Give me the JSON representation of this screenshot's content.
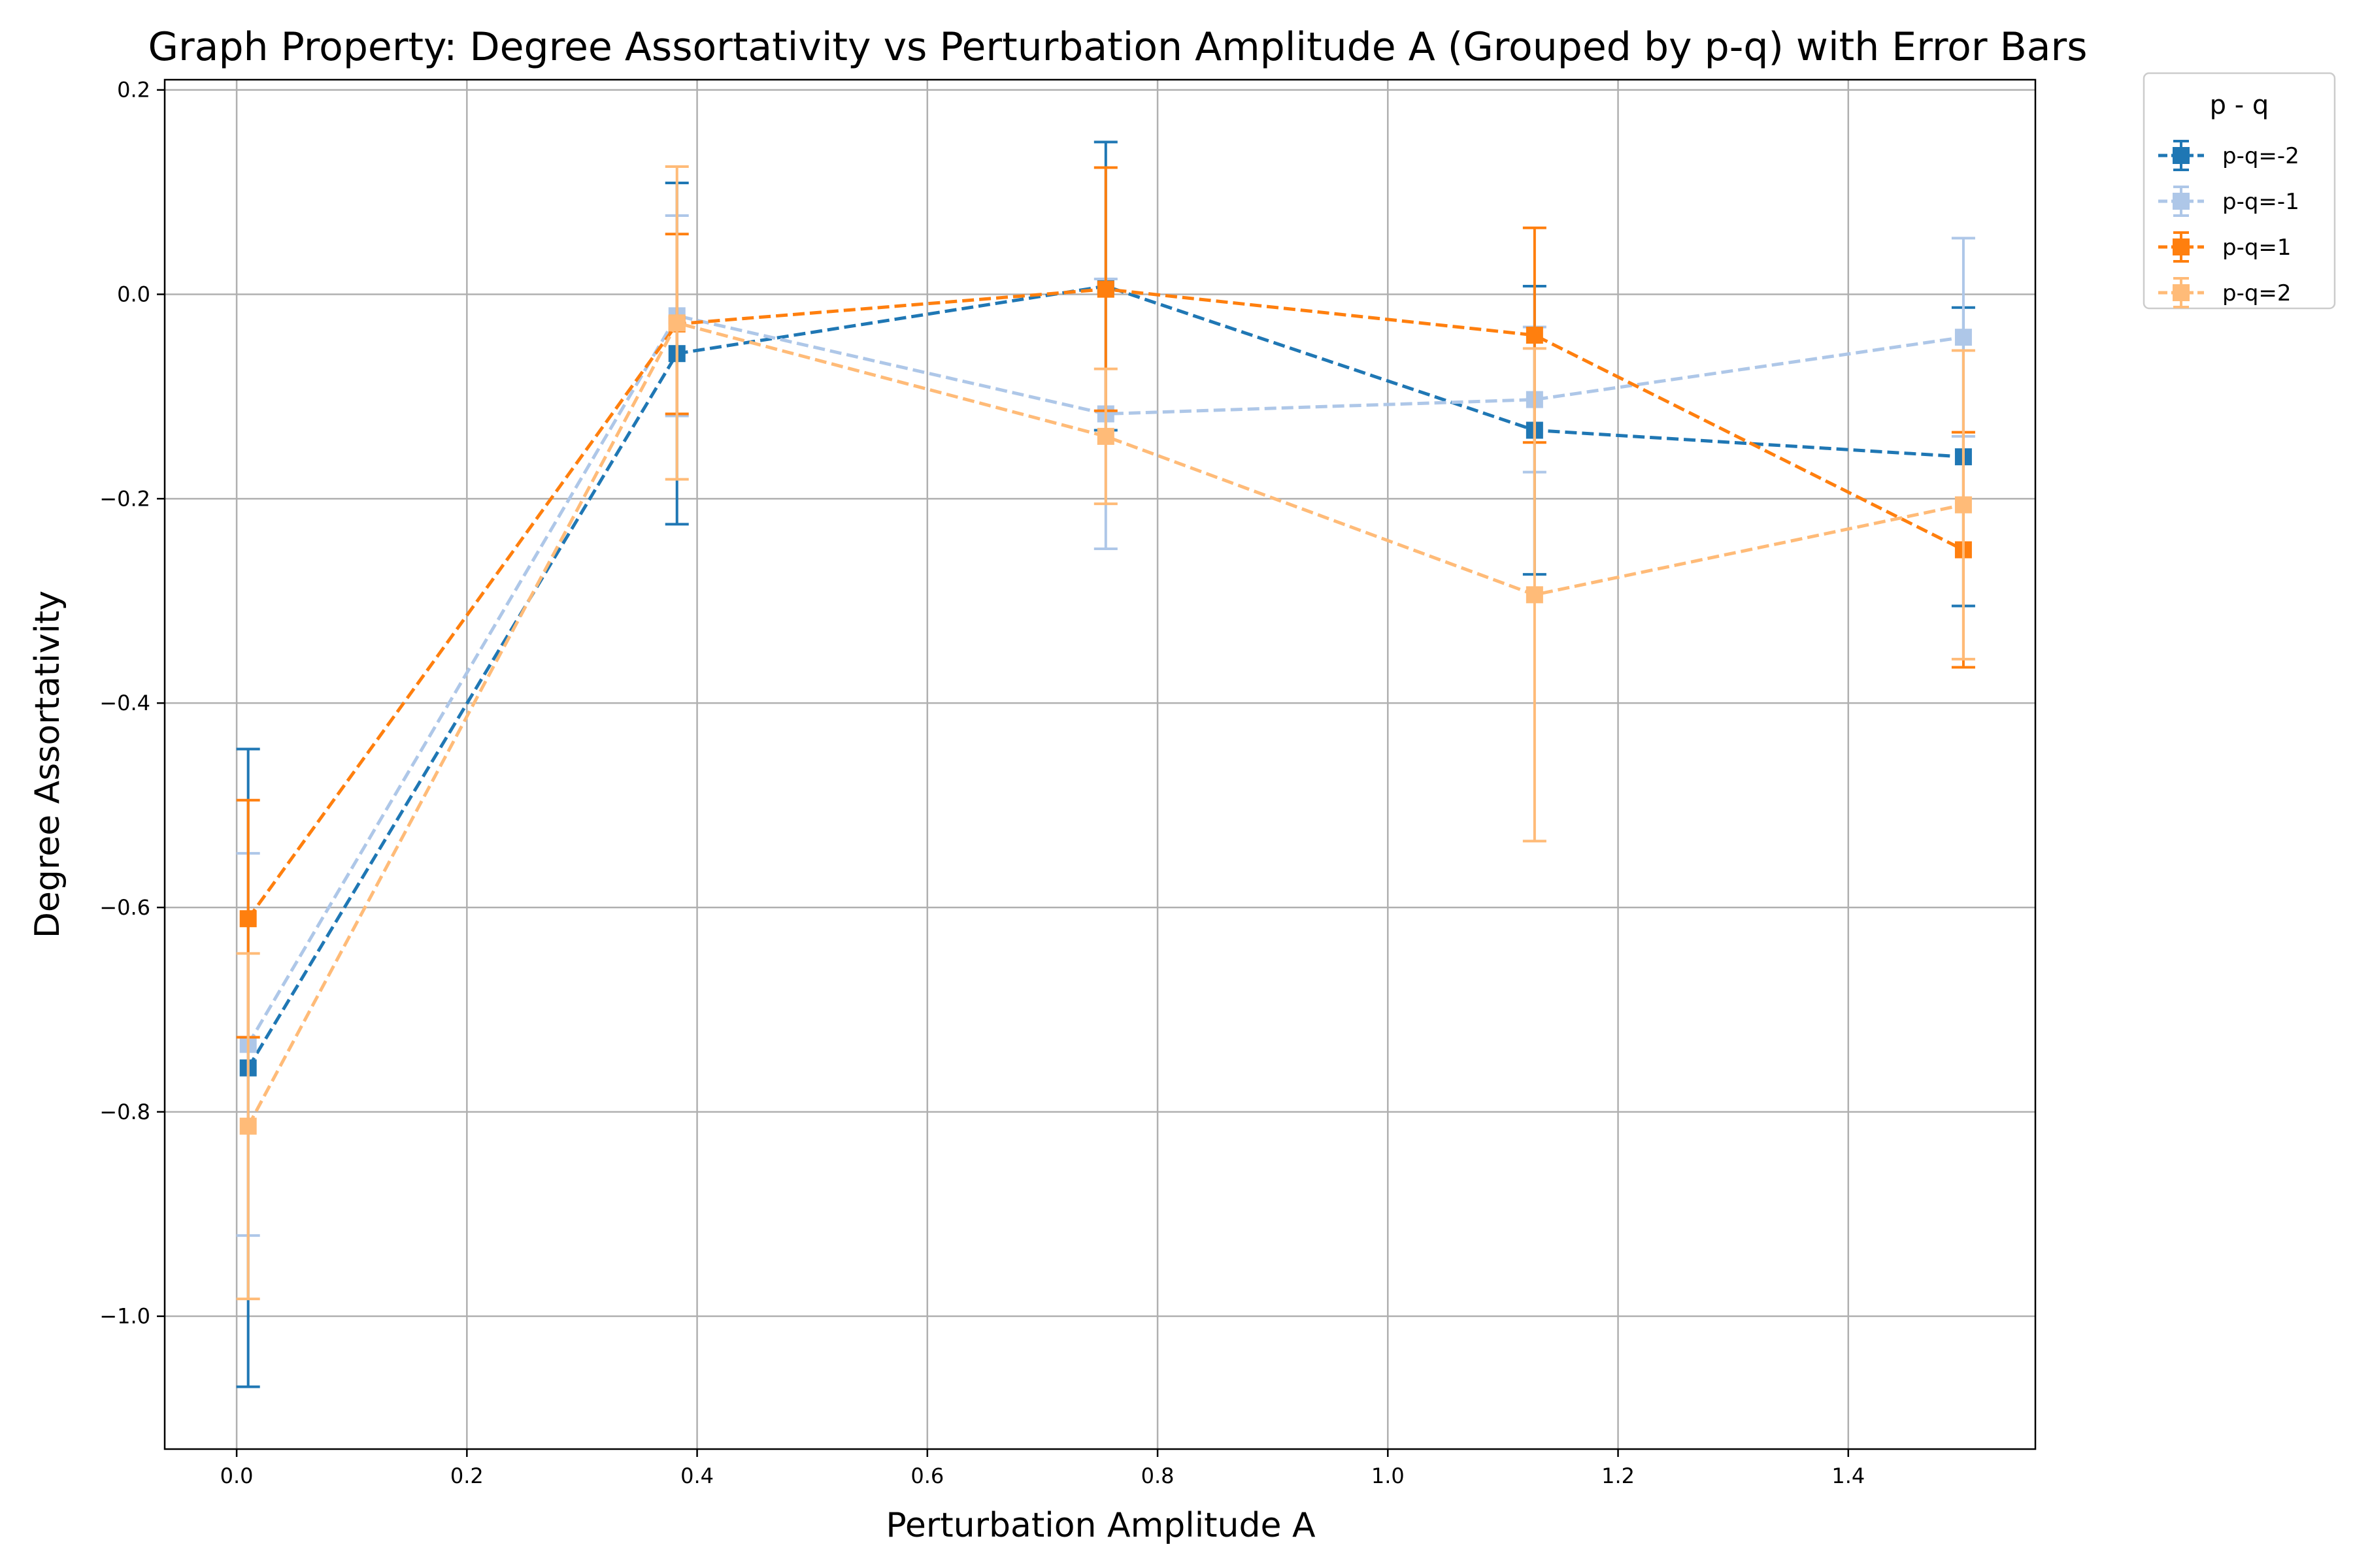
{
  "chart_data": {
    "type": "line",
    "title": "Graph Property: Degree Assortativity vs Perturbation Amplitude A (Grouped by p-q) with Error Bars",
    "xlabel": "Perturbation Amplitude A",
    "ylabel": "Degree Assortativity",
    "xlim": [
      -0.0625,
      1.5625
    ],
    "ylim": [
      -1.13,
      0.21
    ],
    "xticks": [
      0.0,
      0.2,
      0.4,
      0.6,
      0.8,
      1.0,
      1.2,
      1.4
    ],
    "xtick_labels": [
      "0.0",
      "0.2",
      "0.4",
      "0.6",
      "0.8",
      "1.0",
      "1.2",
      "1.4"
    ],
    "yticks": [
      -1.0,
      -0.8,
      -0.6,
      -0.4,
      -0.2,
      0.0,
      0.2
    ],
    "ytick_labels": [
      "−1.0",
      "−0.8",
      "−0.6",
      "−0.4",
      "−0.2",
      "0.0",
      "0.2"
    ],
    "grid": true,
    "legend": {
      "title": "p - q",
      "placement": "outside-top-right"
    },
    "x": [
      0.01,
      0.3825,
      0.755,
      1.1275,
      1.5
    ],
    "series": [
      {
        "name": "p-q=-2",
        "color": "#1f77b4",
        "values": [
          -0.757,
          -0.058,
          0.008,
          -0.133,
          -0.159
        ],
        "errors": [
          0.312,
          0.167,
          0.141,
          0.141,
          0.146
        ]
      },
      {
        "name": "p-q=-1",
        "color": "#aec7e8",
        "values": [
          -0.734,
          -0.021,
          -0.117,
          -0.103,
          -0.042
        ],
        "errors": [
          0.187,
          0.098,
          0.132,
          0.071,
          0.097
        ]
      },
      {
        "name": "p-q=1",
        "color": "#ff7f0e",
        "values": [
          -0.611,
          -0.029,
          0.005,
          -0.04,
          -0.25
        ],
        "errors": [
          0.116,
          0.088,
          0.119,
          0.105,
          0.115
        ]
      },
      {
        "name": "p-q=2",
        "color": "#ffbb78",
        "values": [
          -0.814,
          -0.028,
          -0.139,
          -0.294,
          -0.206
        ],
        "errors": [
          0.169,
          0.153,
          0.066,
          0.241,
          0.151
        ]
      }
    ]
  }
}
